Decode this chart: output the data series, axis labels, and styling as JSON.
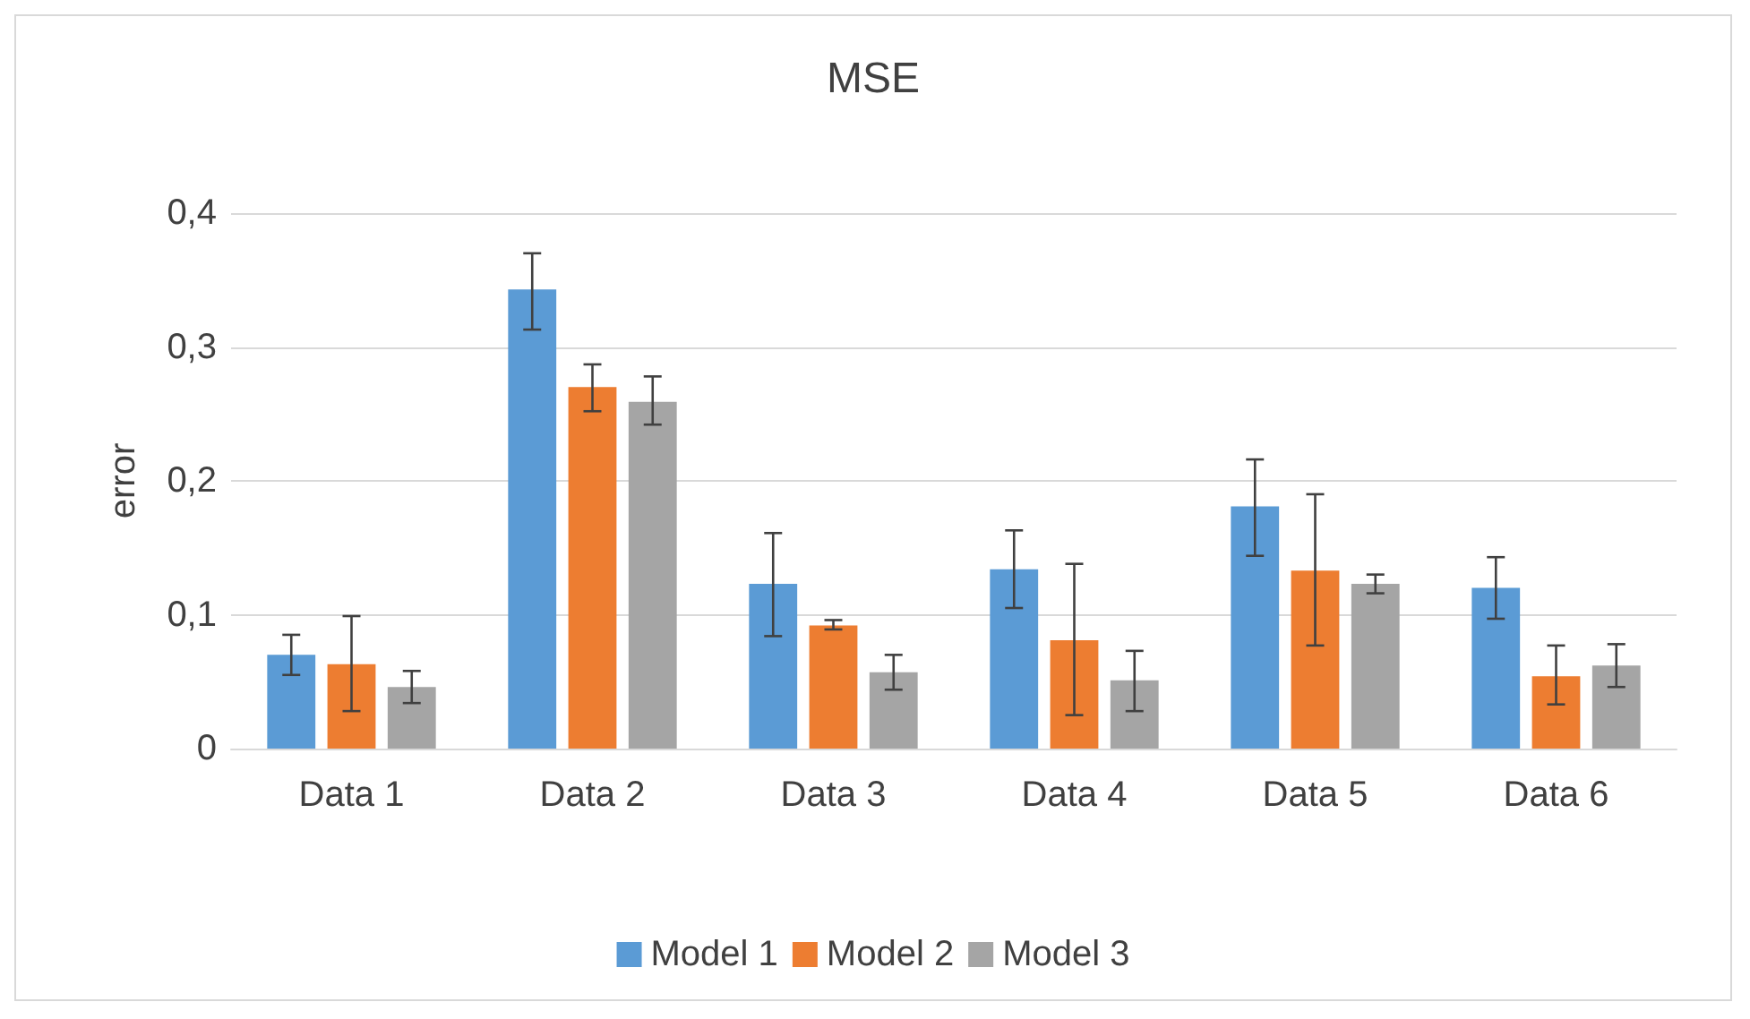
{
  "chart_data": {
    "type": "bar",
    "title": "MSE",
    "ylabel": "error",
    "categories": [
      "Data 1",
      "Data 2",
      "Data 3",
      "Data 4",
      "Data 5",
      "Data 6"
    ],
    "series": [
      {
        "name": "Model 1",
        "color": "#5b9bd5",
        "values": [
          0.07,
          0.343,
          0.123,
          0.134,
          0.181,
          0.12
        ],
        "errors": [
          [
            0.055,
            0.085
          ],
          [
            0.313,
            0.37
          ],
          [
            0.084,
            0.161
          ],
          [
            0.105,
            0.163
          ],
          [
            0.144,
            0.216
          ],
          [
            0.097,
            0.143
          ]
        ]
      },
      {
        "name": "Model 2",
        "color": "#ed7d31",
        "values": [
          0.063,
          0.27,
          0.092,
          0.081,
          0.133,
          0.054
        ],
        "errors": [
          [
            0.028,
            0.099
          ],
          [
            0.252,
            0.287
          ],
          [
            0.089,
            0.096
          ],
          [
            0.025,
            0.138
          ],
          [
            0.077,
            0.19
          ],
          [
            0.033,
            0.077
          ]
        ]
      },
      {
        "name": "Model 3",
        "color": "#a5a5a5",
        "values": [
          0.046,
          0.259,
          0.057,
          0.051,
          0.123,
          0.062
        ],
        "errors": [
          [
            0.034,
            0.058
          ],
          [
            0.242,
            0.278
          ],
          [
            0.044,
            0.07
          ],
          [
            0.028,
            0.073
          ],
          [
            0.116,
            0.13
          ],
          [
            0.046,
            0.078
          ]
        ]
      }
    ],
    "ylim": [
      0,
      0.4
    ],
    "yticks": [
      {
        "value": 0,
        "label": "0"
      },
      {
        "value": 0.1,
        "label": "0,1"
      },
      {
        "value": 0.2,
        "label": "0,2"
      },
      {
        "value": 0.3,
        "label": "0,3"
      },
      {
        "value": 0.4,
        "label": "0,4"
      }
    ],
    "grid": "y",
    "legend": "bottom"
  }
}
